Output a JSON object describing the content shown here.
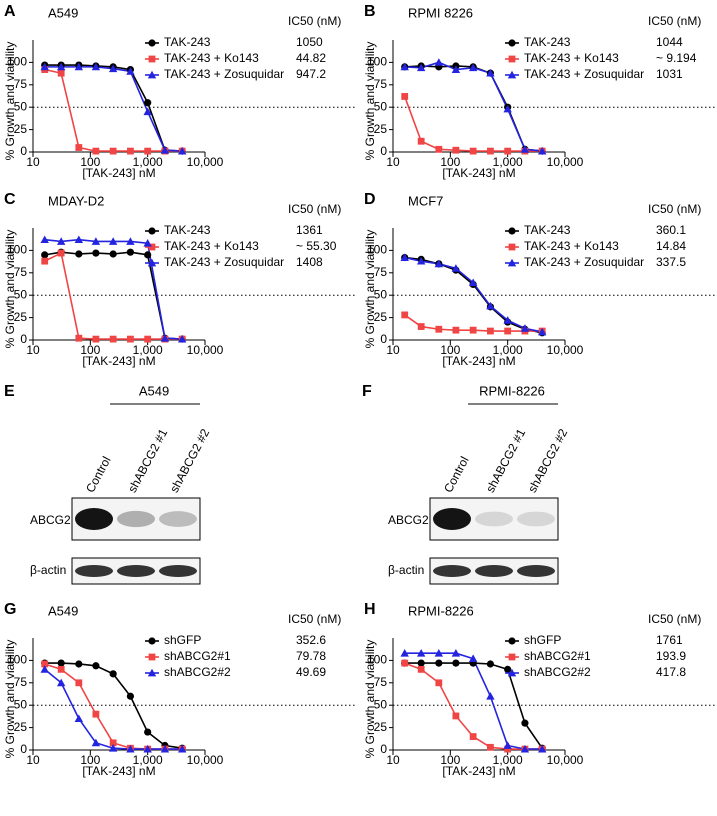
{
  "chart_data": [
    {
      "type": "line",
      "panel_label": "A",
      "title": "A549",
      "ic50_header": "IC50 (nM)",
      "x_label": "[TAK-243]  nM",
      "y_label": "% Growth and viability",
      "xscale": "log",
      "xlim": [
        10,
        10000
      ],
      "xticks": [
        10,
        100,
        {
          "value": 1000,
          "label": "1,000"
        },
        {
          "value": 10000,
          "label": "10,000"
        }
      ],
      "ylim": [
        0,
        125
      ],
      "yticks": [
        0,
        25,
        50,
        75,
        100
      ],
      "reference_line": 50,
      "x": [
        16,
        31,
        63,
        125,
        250,
        500,
        1000,
        2000,
        4000
      ],
      "series": [
        {
          "name": "TAK-243",
          "color": "#000000",
          "marker": "circle",
          "ic50": 1050,
          "values": [
            97,
            97,
            97,
            96,
            95,
            92,
            55,
            2,
            1
          ]
        },
        {
          "name": "TAK-243 + Ko143",
          "color": "#f04545",
          "marker": "square",
          "ic50": 44.82,
          "values": [
            92,
            88,
            5,
            1,
            1,
            1,
            1,
            1,
            1
          ]
        },
        {
          "name": "TAK-243 + Zosuquidar",
          "color": "#2424e0",
          "marker": "triangle",
          "ic50": 947.2,
          "values": [
            95,
            95,
            95,
            95,
            93,
            90,
            45,
            2,
            1
          ]
        }
      ]
    },
    {
      "type": "line",
      "panel_label": "B",
      "title": "RPMI 8226",
      "ic50_header": "IC50 (nM)",
      "x_label": "[TAK-243]  nM",
      "y_label": "% Growth and viability",
      "xscale": "log",
      "xlim": [
        10,
        10000
      ],
      "xticks": [
        10,
        100,
        {
          "value": 1000,
          "label": "1,000"
        },
        {
          "value": 10000,
          "label": "10,000"
        }
      ],
      "ylim": [
        0,
        125
      ],
      "yticks": [
        0,
        25,
        50,
        75,
        100
      ],
      "reference_line": 50,
      "x": [
        16,
        31,
        63,
        125,
        250,
        500,
        1000,
        2000,
        4000
      ],
      "series": [
        {
          "name": "TAK-243",
          "color": "#000000",
          "marker": "circle",
          "ic50": 1044,
          "values": [
            95,
            96,
            95,
            96,
            95,
            88,
            50,
            3,
            1
          ]
        },
        {
          "name": "TAK-243 + Ko143",
          "color": "#f04545",
          "marker": "square",
          "ic50": 9.194,
          "ic50_label": "~ 9.194",
          "values": [
            62,
            12,
            3,
            2,
            1,
            1,
            1,
            1,
            1
          ]
        },
        {
          "name": "TAK-243 + Zosuquidar",
          "color": "#2424e0",
          "marker": "triangle",
          "ic50": 1031,
          "values": [
            95,
            94,
            100,
            92,
            94,
            88,
            48,
            3,
            1
          ]
        }
      ]
    },
    {
      "type": "line",
      "panel_label": "C",
      "title": "MDAY-D2",
      "ic50_header": "IC50 (nM)",
      "x_label": "[TAK-243]  nM",
      "y_label": "% Growth and viability",
      "xscale": "log",
      "xlim": [
        10,
        10000
      ],
      "xticks": [
        10,
        100,
        {
          "value": 1000,
          "label": "1,000"
        },
        {
          "value": 10000,
          "label": "10,000"
        }
      ],
      "ylim": [
        0,
        125
      ],
      "yticks": [
        0,
        25,
        50,
        75,
        100
      ],
      "reference_line": 50,
      "x": [
        16,
        31,
        63,
        125,
        250,
        500,
        1000,
        2000,
        4000
      ],
      "series": [
        {
          "name": "TAK-243",
          "color": "#000000",
          "marker": "circle",
          "ic50": 1361,
          "values": [
            95,
            98,
            96,
            97,
            96,
            98,
            95,
            2,
            1
          ]
        },
        {
          "name": "TAK-243 + Ko143",
          "color": "#f04545",
          "marker": "square",
          "ic50": 55.3,
          "ic50_label": "~ 55.30",
          "values": [
            88,
            97,
            2,
            1,
            1,
            1,
            1,
            1,
            1
          ]
        },
        {
          "name": "TAK-243 + Zosuquidar",
          "color": "#2424e0",
          "marker": "triangle",
          "ic50": 1408,
          "values": [
            112,
            110,
            112,
            110,
            110,
            110,
            108,
            2,
            1
          ]
        }
      ]
    },
    {
      "type": "line",
      "panel_label": "D",
      "title": "MCF7",
      "ic50_header": "IC50 (nM)",
      "x_label": "[TAK-243]  nM",
      "y_label": "% Growth and viability",
      "xscale": "log",
      "xlim": [
        10,
        10000
      ],
      "xticks": [
        10,
        100,
        {
          "value": 1000,
          "label": "1,000"
        },
        {
          "value": 10000,
          "label": "10,000"
        }
      ],
      "ylim": [
        0,
        125
      ],
      "yticks": [
        0,
        25,
        50,
        75,
        100
      ],
      "reference_line": 50,
      "x": [
        16,
        31,
        63,
        125,
        250,
        500,
        1000,
        2000,
        4000
      ],
      "series": [
        {
          "name": "TAK-243",
          "color": "#000000",
          "marker": "circle",
          "ic50": 360.1,
          "values": [
            92,
            90,
            85,
            78,
            62,
            37,
            20,
            12,
            8
          ]
        },
        {
          "name": "TAK-243 + Ko143",
          "color": "#f04545",
          "marker": "square",
          "ic50": 14.84,
          "values": [
            28,
            15,
            12,
            11,
            11,
            10,
            10,
            10,
            10
          ]
        },
        {
          "name": "TAK-243 + Zosuquidar",
          "color": "#2424e0",
          "marker": "triangle",
          "ic50": 337.5,
          "values": [
            92,
            88,
            85,
            80,
            64,
            38,
            22,
            13,
            9
          ]
        }
      ]
    },
    {
      "type": "line",
      "panel_label": "G",
      "title": "A549",
      "ic50_header": "IC50 (nM)",
      "x_label": "[TAK-243]  nM",
      "y_label": "% Growth and viability",
      "xscale": "log",
      "xlim": [
        10,
        10000
      ],
      "xticks": [
        10,
        100,
        {
          "value": 1000,
          "label": "1,000"
        },
        {
          "value": 10000,
          "label": "10,000"
        }
      ],
      "ylim": [
        0,
        125
      ],
      "yticks": [
        0,
        25,
        50,
        75,
        100
      ],
      "reference_line": 50,
      "x": [
        16,
        31,
        63,
        125,
        250,
        500,
        1000,
        2000,
        4000
      ],
      "series": [
        {
          "name": "shGFP",
          "color": "#000000",
          "marker": "circle",
          "ic50": 352.6,
          "values": [
            97,
            97,
            96,
            94,
            85,
            60,
            20,
            5,
            2
          ]
        },
        {
          "name": "shABCG2#1",
          "color": "#f04545",
          "marker": "square",
          "ic50": 79.78,
          "values": [
            96,
            90,
            75,
            40,
            8,
            2,
            1,
            1,
            1
          ]
        },
        {
          "name": "shABCG2#2",
          "color": "#2424e0",
          "marker": "triangle",
          "ic50": 49.69,
          "values": [
            90,
            75,
            35,
            8,
            2,
            1,
            1,
            1,
            1
          ]
        }
      ]
    },
    {
      "type": "line",
      "panel_label": "H",
      "title": "RPMI-8226",
      "ic50_header": "IC50 (nM)",
      "x_label": "[TAK-243]  nM",
      "y_label": "% Growth and viability",
      "xscale": "log",
      "xlim": [
        10,
        10000
      ],
      "xticks": [
        10,
        100,
        {
          "value": 1000,
          "label": "1,000"
        },
        {
          "value": 10000,
          "label": "10,000"
        }
      ],
      "ylim": [
        0,
        125
      ],
      "yticks": [
        0,
        25,
        50,
        75,
        100
      ],
      "reference_line": 50,
      "x": [
        16,
        31,
        63,
        125,
        250,
        500,
        1000,
        2000,
        4000
      ],
      "series": [
        {
          "name": "shGFP",
          "color": "#000000",
          "marker": "circle",
          "ic50": 1761,
          "values": [
            97,
            97,
            97,
            97,
            97,
            96,
            90,
            30,
            2
          ]
        },
        {
          "name": "shABCG2#1",
          "color": "#f04545",
          "marker": "square",
          "ic50": 193.9,
          "values": [
            97,
            90,
            75,
            38,
            15,
            3,
            1,
            1,
            1
          ]
        },
        {
          "name": "shABCG2#2",
          "color": "#2424e0",
          "marker": "triangle",
          "ic50": 417.8,
          "values": [
            108,
            108,
            108,
            108,
            102,
            60,
            5,
            1,
            1
          ]
        }
      ]
    }
  ],
  "blots": [
    {
      "panel_label": "E",
      "title": "A549",
      "lanes": [
        "Control",
        "shABCG2 #1",
        "shABCG2 #2"
      ],
      "rows": [
        "ABCG2",
        "β-actin"
      ]
    },
    {
      "panel_label": "F",
      "title": "RPMI-8226",
      "lanes": [
        "Control",
        "shABCG2 #1",
        "shABCG2 #2"
      ],
      "rows": [
        "ABCG2",
        "β-actin"
      ]
    }
  ]
}
